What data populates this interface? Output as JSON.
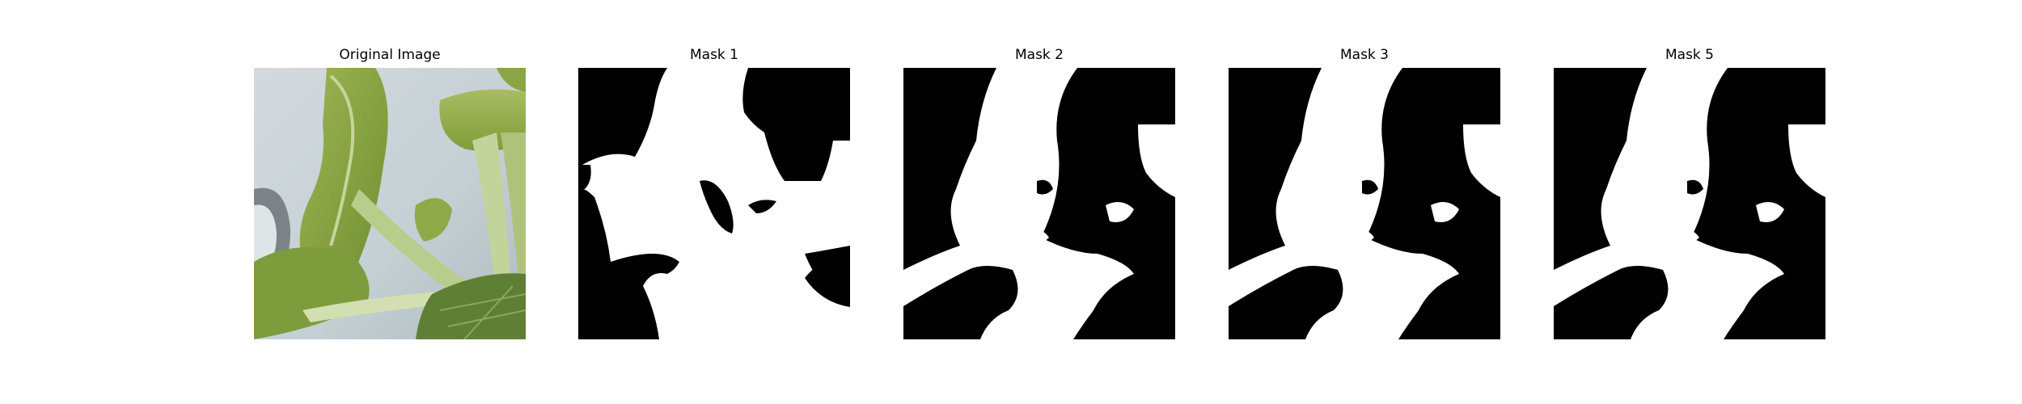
{
  "figure": {
    "panels": [
      {
        "title": "Original Image",
        "kind": "photo",
        "subject": "leafy-green-plant-photo"
      },
      {
        "title": "Mask 1",
        "kind": "binary-mask"
      },
      {
        "title": "Mask 2",
        "kind": "binary-mask"
      },
      {
        "title": "Mask 3",
        "kind": "binary-mask"
      },
      {
        "title": "Mask 5",
        "kind": "binary-mask"
      }
    ]
  },
  "colors": {
    "mask_foreground": "#ffffff",
    "mask_background": "#000000",
    "leaf": "#8fa84a",
    "stem": "#b9cf8e",
    "backdrop": "#c9d3d8"
  }
}
